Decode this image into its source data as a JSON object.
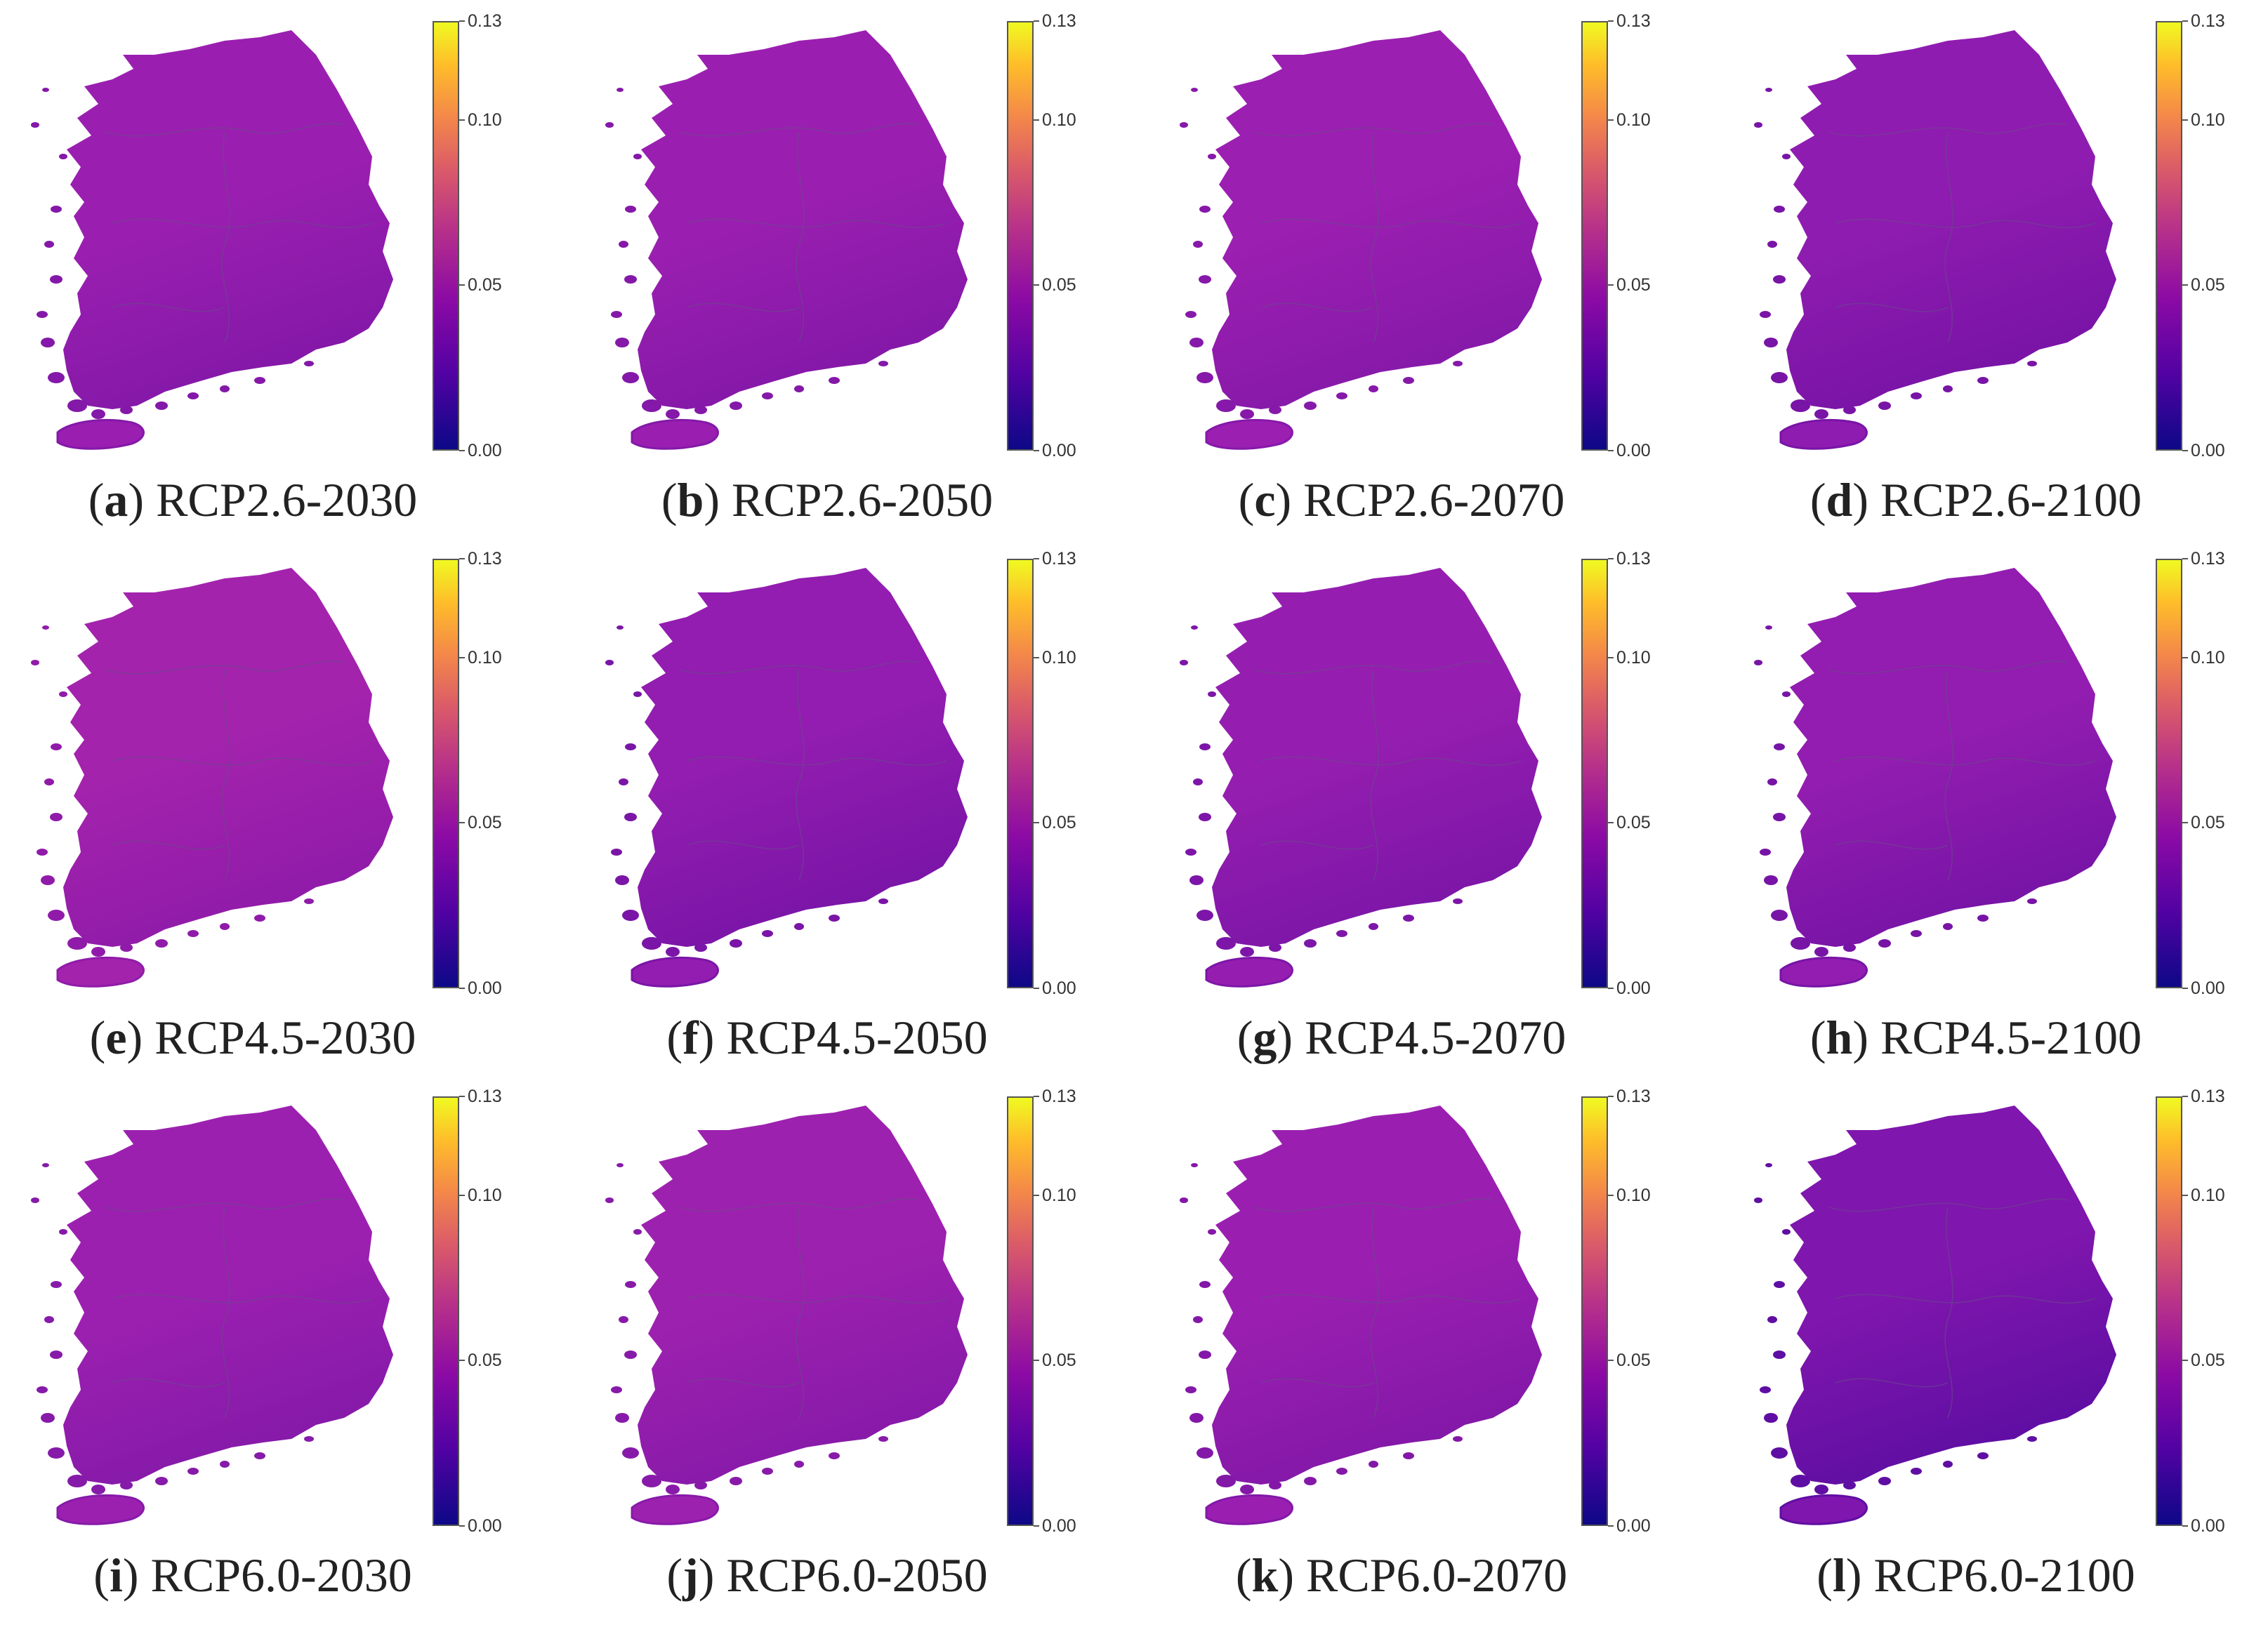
{
  "colorbar": {
    "ticks": [
      "0.13",
      "0.10",
      "0.05",
      "0.00"
    ],
    "colormap": "plasma",
    "colors": [
      "#0d0887",
      "#5302a3",
      "#8b0aa5",
      "#b83289",
      "#db5c68",
      "#f48849",
      "#febd2a",
      "#f0f921"
    ]
  },
  "panels": [
    {
      "letter": "a",
      "title": "RCP2.6-2030",
      "fill": "#9a1fb0",
      "shade": "#8418a8"
    },
    {
      "letter": "b",
      "title": "RCP2.6-2050",
      "fill": "#9a1fb0",
      "shade": "#8418a8"
    },
    {
      "letter": "c",
      "title": "RCP2.6-2070",
      "fill": "#9b1fb1",
      "shade": "#8619a9"
    },
    {
      "letter": "d",
      "title": "RCP2.6-2100",
      "fill": "#8f1cb0",
      "shade": "#7814a6"
    },
    {
      "letter": "e",
      "title": "RCP4.5-2030",
      "fill": "#a323ad",
      "shade": "#901ba9"
    },
    {
      "letter": "f",
      "title": "RCP4.5-2050",
      "fill": "#921db0",
      "shade": "#7a15a7"
    },
    {
      "letter": "g",
      "title": "RCP4.5-2070",
      "fill": "#951eb0",
      "shade": "#7d16a8"
    },
    {
      "letter": "h",
      "title": "RCP4.5-2100",
      "fill": "#921db0",
      "shade": "#7714a6"
    },
    {
      "letter": "i",
      "title": "RCP6.0-2030",
      "fill": "#9c20b0",
      "shade": "#861aa9"
    },
    {
      "letter": "j",
      "title": "RCP6.0-2050",
      "fill": "#9d21af",
      "shade": "#881aa9"
    },
    {
      "letter": "k",
      "title": "RCP6.0-2070",
      "fill": "#9a1fb0",
      "shade": "#8318a8"
    },
    {
      "letter": "l",
      "title": "RCP6.0-2100",
      "fill": "#7f16ad",
      "shade": "#5f0ea3"
    }
  ]
}
